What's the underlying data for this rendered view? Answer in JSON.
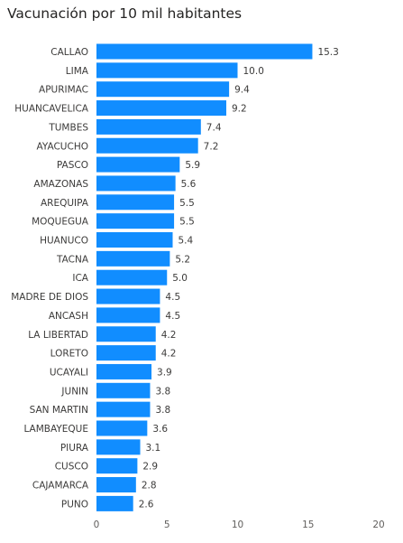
{
  "chart_data": {
    "type": "bar",
    "orientation": "horizontal",
    "title": "Vacunación por 10 mil habitantes",
    "categories": [
      "CALLAO",
      "LIMA",
      "APURIMAC",
      "HUANCAVELICA",
      "TUMBES",
      "AYACUCHO",
      "PASCO",
      "AMAZONAS",
      "AREQUIPA",
      "MOQUEGUA",
      "HUANUCO",
      "TACNA",
      "ICA",
      "MADRE DE DIOS",
      "ANCASH",
      "LA LIBERTAD",
      "LORETO",
      "UCAYALI",
      "JUNIN",
      "SAN MARTIN",
      "LAMBAYEQUE",
      "PIURA",
      "CUSCO",
      "CAJAMARCA",
      "PUNO"
    ],
    "values": [
      15.3,
      10.0,
      9.4,
      9.2,
      7.4,
      7.2,
      5.9,
      5.6,
      5.5,
      5.5,
      5.4,
      5.2,
      5.0,
      4.5,
      4.5,
      4.2,
      4.2,
      3.9,
      3.8,
      3.8,
      3.6,
      3.1,
      2.9,
      2.8,
      2.6
    ],
    "value_labels": [
      "15.3",
      "10.0",
      "9.4",
      "9.2",
      "7.4",
      "7.2",
      "5.9",
      "5.6",
      "5.5",
      "5.5",
      "5.4",
      "5.2",
      "5.0",
      "4.5",
      "4.5",
      "4.2",
      "4.2",
      "3.9",
      "3.8",
      "3.8",
      "3.6",
      "3.1",
      "2.9",
      "2.8",
      "2.6"
    ],
    "xlim": [
      0,
      20
    ],
    "xticks": [
      0,
      5,
      10,
      15,
      20
    ],
    "xlabel": "",
    "ylabel": "",
    "grid": false,
    "bar_color": "#118DFF"
  }
}
